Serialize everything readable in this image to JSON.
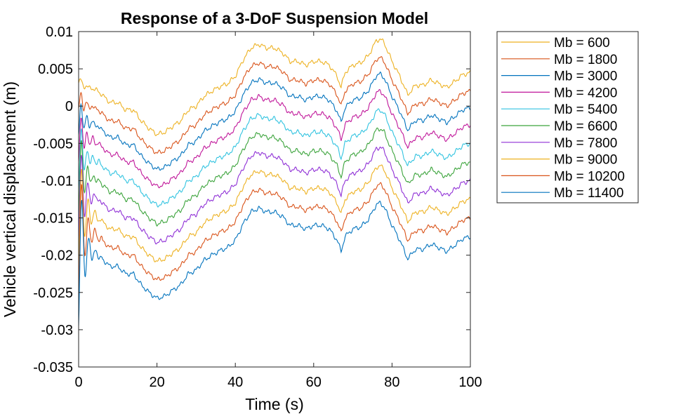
{
  "chart_data": {
    "type": "line",
    "title": "Response of a 3-DoF Suspension Model",
    "xlabel": "Time (s)",
    "ylabel": "Vehicle vertical displacement (m)",
    "xlim": [
      0,
      100
    ],
    "ylim": [
      -0.035,
      0.01
    ],
    "xticks": [
      0,
      20,
      40,
      60,
      80,
      100
    ],
    "xtick_labels": [
      "0",
      "20",
      "40",
      "60",
      "80",
      "100"
    ],
    "yticks": [
      0.01,
      0.005,
      0,
      -0.005,
      -0.01,
      -0.015,
      -0.02,
      -0.025,
      -0.03,
      -0.035
    ],
    "ytick_labels": [
      "0.01",
      "0.005",
      "0",
      "-0.005",
      "-0.01",
      "-0.015",
      "-0.02",
      "-0.025",
      "-0.03",
      "-0.035"
    ],
    "grid": false,
    "legend_position": "outside-right",
    "base_profile": {
      "x": [
        0,
        1,
        2,
        3,
        5,
        8,
        10,
        12,
        14,
        16,
        18,
        20,
        22,
        24,
        26,
        28,
        30,
        32,
        34,
        36,
        38,
        40,
        42,
        44,
        46,
        48,
        50,
        52,
        54,
        56,
        58,
        60,
        62,
        64,
        66,
        67,
        68,
        70,
        72,
        74,
        76,
        77,
        78,
        80,
        82,
        84,
        86,
        88,
        90,
        92,
        94,
        96,
        98,
        100
      ],
      "y": [
        0.0035,
        0.003,
        0.0025,
        0.0025,
        0.002,
        0.0005,
        0.0005,
        -0.0005,
        -0.0005,
        -0.002,
        -0.003,
        -0.0038,
        -0.0035,
        -0.0027,
        -0.002,
        -0.0005,
        0.0,
        0.0013,
        0.002,
        0.0026,
        0.003,
        0.004,
        0.0062,
        0.0078,
        0.0083,
        0.0078,
        0.0078,
        0.0072,
        0.006,
        0.006,
        0.0055,
        0.006,
        0.006,
        0.0055,
        0.004,
        0.0025,
        0.0045,
        0.0055,
        0.0058,
        0.0068,
        0.0088,
        0.009,
        0.0085,
        0.006,
        0.004,
        0.0015,
        0.0028,
        0.0028,
        0.0035,
        0.003,
        0.0025,
        0.0033,
        0.0042,
        0.0045
      ]
    },
    "series": [
      {
        "name": "Mb = 600",
        "color": "#EDB120",
        "offset": 0.0
      },
      {
        "name": "Mb = 1800",
        "color": "#D95319",
        "offset": -0.0025
      },
      {
        "name": "Mb = 3000",
        "color": "#0072BD",
        "offset": -0.0047
      },
      {
        "name": "Mb = 4200",
        "color": "#C0169A",
        "offset": -0.007
      },
      {
        "name": "Mb = 5400",
        "color": "#30C3E0",
        "offset": -0.0095
      },
      {
        "name": "Mb = 6600",
        "color": "#3AA33A",
        "offset": -0.012
      },
      {
        "name": "Mb = 7800",
        "color": "#8F2FD6",
        "offset": -0.0145
      },
      {
        "name": "Mb = 9000",
        "color": "#EDB120",
        "offset": -0.017
      },
      {
        "name": "Mb = 10200",
        "color": "#D95319",
        "offset": -0.0195
      },
      {
        "name": "Mb = 11400",
        "color": "#0072BD",
        "offset": -0.022
      }
    ]
  }
}
